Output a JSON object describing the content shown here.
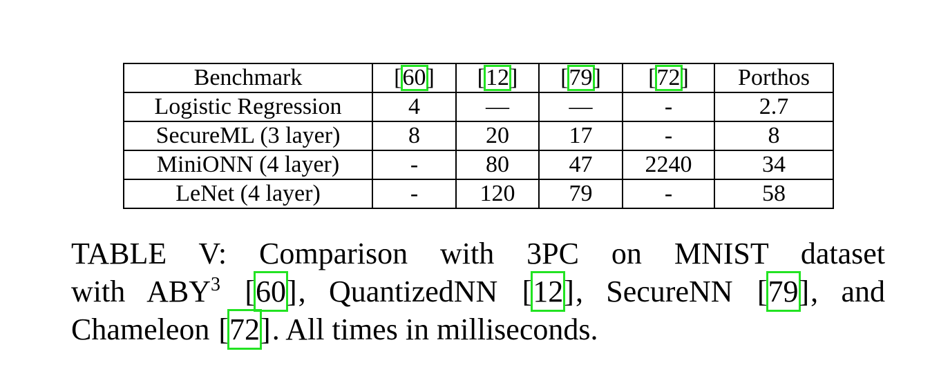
{
  "table": {
    "headers": [
      {
        "text": "Benchmark",
        "is_citation": false
      },
      {
        "text": "60",
        "is_citation": true
      },
      {
        "text": "12",
        "is_citation": true
      },
      {
        "text": "79",
        "is_citation": true
      },
      {
        "text": "72",
        "is_citation": true
      },
      {
        "text": "Porthos",
        "is_citation": false
      }
    ],
    "rows": [
      [
        "Logistic Regression",
        "4",
        "—",
        "—",
        "-",
        "2.7"
      ],
      [
        "SecureML (3 layer)",
        "8",
        "20",
        "17",
        "-",
        "8"
      ],
      [
        "MiniONN (4 layer)",
        "-",
        "80",
        "47",
        "2240",
        "34"
      ],
      [
        "LeNet (4 layer)",
        "-",
        "120",
        "79",
        "-",
        "58"
      ]
    ]
  },
  "caption": {
    "line1": "TABLE V: Comparison with 3PC on MNIST dataset",
    "line2_a": "with ABY",
    "line2_sup": "3",
    "line2_cite1": "60",
    "line2_b": ", QuantizedNN",
    "line2_cite2": "12",
    "line2_c": ", SecureNN",
    "line2_cite3": "79",
    "line2_d": ", and",
    "line3_a": "Chameleon",
    "line3_cite": "72",
    "line3_b": ". All times in milliseconds."
  },
  "colors": {
    "citation_box": "#22e322",
    "text": "#000000"
  }
}
